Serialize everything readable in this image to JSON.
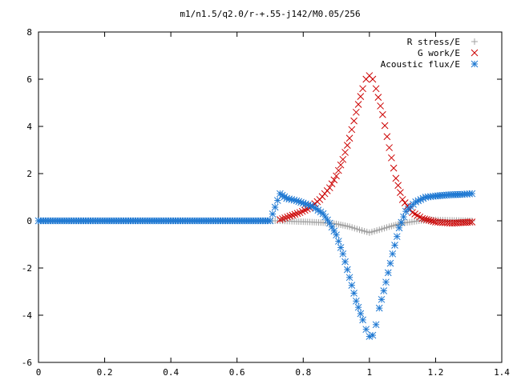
{
  "chart_data": {
    "type": "scatter",
    "title": "m1/n1.5/q2.0/r-+.55-j142/M0.05/256",
    "xlabel": "",
    "ylabel": "",
    "xlim": [
      0,
      1.4
    ],
    "ylim": [
      -6,
      8
    ],
    "x_ticks": [
      "0",
      "0.2",
      "0.4",
      "0.6",
      "0.8",
      "1",
      "1.2",
      "1.4"
    ],
    "y_ticks": [
      "-6",
      "-4",
      "-2",
      "0",
      "2",
      "4",
      "6",
      "8"
    ],
    "grid": false,
    "legend_position": "top-right",
    "series": [
      {
        "name": "R stress/E",
        "marker": "plus",
        "color": "#a0a0a0",
        "x": [
          0,
          0.1,
          0.2,
          0.3,
          0.4,
          0.5,
          0.6,
          0.7,
          0.73,
          0.78,
          0.82,
          0.86,
          0.9,
          0.94,
          0.97,
          1.0,
          1.03,
          1.06,
          1.1,
          1.15,
          1.2,
          1.25,
          1.31
        ],
        "y": [
          0,
          0,
          0,
          0,
          0,
          0,
          0,
          0,
          0,
          -0.03,
          -0.05,
          -0.08,
          -0.13,
          -0.25,
          -0.38,
          -0.5,
          -0.38,
          -0.25,
          -0.1,
          0.0,
          0.04,
          0.02,
          0.0
        ]
      },
      {
        "name": "G work/E",
        "marker": "cross",
        "color": "#cc0000",
        "x": [
          0.73,
          0.76,
          0.79,
          0.82,
          0.85,
          0.88,
          0.9,
          0.92,
          0.94,
          0.96,
          0.98,
          0.99,
          1.0,
          1.01,
          1.02,
          1.04,
          1.06,
          1.08,
          1.1,
          1.13,
          1.16,
          1.2,
          1.25,
          1.31
        ],
        "y": [
          0.05,
          0.2,
          0.35,
          0.55,
          0.9,
          1.4,
          1.9,
          2.6,
          3.5,
          4.6,
          5.6,
          6.0,
          6.15,
          6.0,
          5.6,
          4.5,
          3.1,
          1.8,
          0.9,
          0.35,
          0.1,
          -0.05,
          -0.1,
          -0.05
        ]
      },
      {
        "name": "Acoustic flux/E",
        "marker": "star",
        "color": "#1e78d2",
        "x": [
          0,
          0.05,
          0.1,
          0.15,
          0.2,
          0.25,
          0.3,
          0.35,
          0.4,
          0.45,
          0.5,
          0.55,
          0.6,
          0.65,
          0.7,
          0.73,
          0.75,
          0.78,
          0.8,
          0.83,
          0.86,
          0.88,
          0.9,
          0.92,
          0.94,
          0.96,
          0.98,
          0.99,
          1.0,
          1.01,
          1.02,
          1.03,
          1.05,
          1.07,
          1.09,
          1.11,
          1.14,
          1.17,
          1.2,
          1.24,
          1.28,
          1.31
        ],
        "y": [
          0,
          0,
          0,
          0,
          0,
          0,
          0,
          0,
          0,
          0,
          0,
          0,
          0,
          0,
          0,
          1.15,
          0.95,
          0.85,
          0.75,
          0.6,
          0.3,
          -0.1,
          -0.6,
          -1.4,
          -2.4,
          -3.4,
          -4.2,
          -4.6,
          -4.9,
          -4.85,
          -4.4,
          -3.7,
          -2.6,
          -1.4,
          -0.3,
          0.4,
          0.8,
          1.0,
          1.05,
          1.1,
          1.12,
          1.15
        ]
      }
    ]
  }
}
